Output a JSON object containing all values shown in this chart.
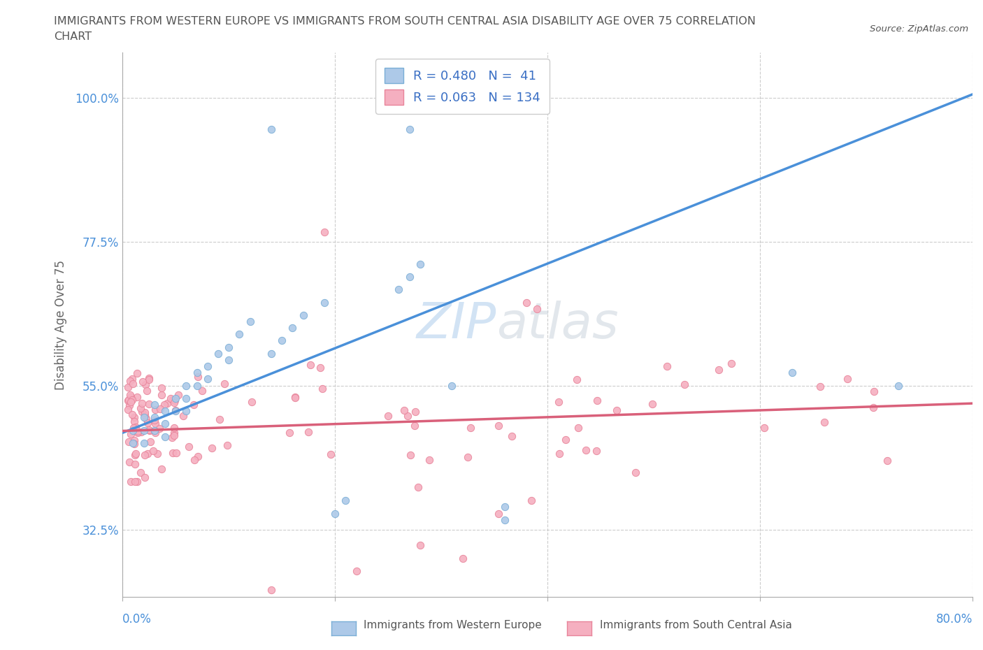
{
  "title_line1": "IMMIGRANTS FROM WESTERN EUROPE VS IMMIGRANTS FROM SOUTH CENTRAL ASIA DISABILITY AGE OVER 75 CORRELATION",
  "title_line2": "CHART",
  "source": "Source: ZipAtlas.com",
  "ylabel": "Disability Age Over 75",
  "xlim": [
    0.0,
    0.8
  ],
  "ylim": [
    0.22,
    1.07
  ],
  "ytick_vals": [
    0.325,
    0.55,
    0.775,
    1.0
  ],
  "ytick_labels": [
    "32.5%",
    "55.0%",
    "77.5%",
    "100.0%"
  ],
  "xtick_vals": [
    0.0,
    0.8
  ],
  "xtick_labels": [
    "0.0%",
    "80.0%"
  ],
  "series1_color": "#adc9e8",
  "series1_edge": "#7aaed6",
  "series2_color": "#f5afc0",
  "series2_edge": "#e8849a",
  "trendline1_color": "#4a90d9",
  "trendline2_color": "#d9607a",
  "legend_text_color": "#3a6fc4",
  "axis_color": "#aaaaaa",
  "grid_color": "#cccccc",
  "title_color": "#555555",
  "ylabel_color": "#666666",
  "ytick_color": "#4a90d9",
  "xtick_color": "#4a90d9",
  "R1": 0.48,
  "N1": 41,
  "R2": 0.063,
  "N2": 134,
  "legend1_label": "Immigrants from Western Europe",
  "legend2_label": "Immigrants from South Central Asia",
  "watermark1": "ZIP",
  "watermark2": "atlas",
  "background_color": "#ffffff",
  "trendline1_x0": 0.0,
  "trendline1_y0": 0.476,
  "trendline1_x1": 0.8,
  "trendline1_y1": 1.005,
  "trendline2_x0": 0.0,
  "trendline2_y0": 0.479,
  "trendline2_x1": 0.8,
  "trendline2_y1": 0.522
}
